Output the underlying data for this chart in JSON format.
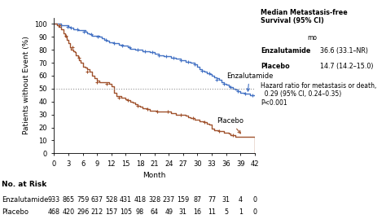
{
  "title": "",
  "ylabel": "Patients without Event (%)",
  "xlabel": "Month",
  "ylim": [
    0,
    105
  ],
  "xlim": [
    0,
    42
  ],
  "xticks": [
    0,
    3,
    6,
    9,
    12,
    15,
    18,
    21,
    24,
    27,
    30,
    33,
    36,
    39,
    42
  ],
  "yticks": [
    0,
    10,
    20,
    30,
    40,
    50,
    60,
    70,
    80,
    90,
    100
  ],
  "enzalutamide_color": "#4472C4",
  "placebo_color": "#A0522D",
  "enza_label": "Enzalutamide",
  "placebo_label": "Placebo",
  "at_risk_times": [
    0,
    3,
    6,
    9,
    12,
    15,
    18,
    21,
    24,
    27,
    30,
    33,
    36,
    39,
    42
  ],
  "at_risk_enza": [
    933,
    865,
    759,
    637,
    528,
    431,
    418,
    328,
    237,
    159,
    87,
    77,
    31,
    4,
    0
  ],
  "at_risk_placebo": [
    468,
    420,
    296,
    212,
    157,
    105,
    98,
    64,
    49,
    31,
    16,
    11,
    5,
    1,
    0
  ],
  "enza_x": [
    0,
    0.3,
    0.6,
    1.0,
    1.5,
    2.0,
    2.5,
    3.0,
    3.3,
    3.6,
    4.0,
    4.3,
    4.6,
    5.0,
    5.3,
    5.6,
    6.0,
    6.5,
    7.0,
    7.5,
    8.0,
    8.5,
    9.0,
    9.5,
    10.0,
    10.5,
    11.0,
    11.5,
    12.0,
    12.5,
    13.0,
    13.5,
    14.0,
    14.5,
    15.0,
    15.5,
    16.0,
    16.5,
    17.0,
    17.5,
    18.0,
    18.5,
    19.0,
    19.5,
    20.0,
    20.5,
    21.0,
    21.5,
    22.0,
    22.5,
    23.0,
    23.5,
    24.0,
    24.5,
    25.0,
    25.5,
    26.0,
    26.5,
    27.0,
    27.5,
    28.0,
    28.5,
    29.0,
    29.5,
    30.0,
    30.5,
    31.0,
    31.5,
    32.0,
    32.5,
    33.0,
    33.5,
    34.0,
    34.5,
    35.0,
    35.5,
    36.0,
    36.5,
    37.0,
    37.5,
    38.0,
    38.5,
    39.0,
    40.0,
    41.0,
    42.0
  ],
  "enza_y": [
    100,
    100,
    100,
    100,
    99,
    99,
    99,
    98,
    97,
    97,
    96,
    96,
    96,
    95,
    95,
    95,
    95,
    94,
    93,
    92,
    91,
    91,
    91,
    90,
    89,
    88,
    87,
    86,
    86,
    85,
    85,
    84,
    84,
    83,
    83,
    82,
    81,
    81,
    80,
    80,
    80,
    79,
    79,
    79,
    78,
    78,
    77,
    77,
    76,
    76,
    75,
    75,
    75,
    74,
    74,
    73,
    73,
    72,
    72,
    71,
    71,
    70,
    70,
    69,
    67,
    65,
    64,
    63,
    62,
    61,
    60,
    59,
    58,
    57,
    55,
    54,
    53,
    52,
    51,
    50,
    49,
    48,
    47,
    46,
    45,
    45
  ],
  "placebo_x": [
    0,
    0.3,
    0.6,
    1.0,
    1.5,
    2.0,
    2.3,
    2.6,
    3.0,
    3.3,
    3.6,
    4.0,
    4.3,
    4.6,
    5.0,
    5.3,
    5.6,
    6.0,
    6.5,
    7.0,
    7.5,
    8.0,
    8.5,
    9.0,
    9.5,
    10.0,
    10.5,
    11.0,
    11.5,
    12.0,
    12.5,
    13.0,
    13.5,
    14.0,
    14.5,
    15.0,
    15.5,
    16.0,
    16.5,
    17.0,
    17.5,
    18.0,
    18.5,
    19.0,
    19.5,
    20.0,
    20.5,
    21.0,
    21.5,
    22.0,
    22.5,
    23.0,
    23.5,
    24.0,
    24.5,
    25.0,
    25.5,
    26.0,
    26.5,
    27.0,
    27.5,
    28.0,
    28.5,
    29.0,
    29.5,
    30.0,
    30.5,
    31.0,
    31.5,
    32.0,
    32.5,
    33.0,
    33.5,
    34.0,
    34.5,
    35.0,
    35.5,
    36.0,
    36.5,
    37.0,
    38.0,
    39.0,
    40.0,
    42.0
  ],
  "placebo_y": [
    100,
    100,
    99,
    98,
    96,
    93,
    90,
    88,
    85,
    82,
    80,
    79,
    78,
    76,
    74,
    72,
    70,
    67,
    66,
    65,
    63,
    60,
    58,
    56,
    55,
    55,
    55,
    55,
    54,
    52,
    47,
    44,
    44,
    43,
    43,
    42,
    41,
    40,
    39,
    38,
    37,
    36,
    35,
    35,
    34,
    33,
    33,
    33,
    32,
    32,
    32,
    32,
    32,
    32,
    31,
    31,
    30,
    30,
    30,
    30,
    29,
    28,
    27,
    27,
    26,
    26,
    25,
    25,
    24,
    23,
    22,
    19,
    18,
    18,
    17,
    17,
    16,
    16,
    15,
    14,
    13,
    13,
    13,
    0
  ],
  "enza_censor_x": [
    1.5,
    2.8,
    3.5,
    4.8,
    6.2,
    7.8,
    9.2,
    10.8,
    12.5,
    14.2,
    15.8,
    17.5,
    19.0,
    20.5,
    22.0,
    23.5,
    25.0,
    26.5,
    28.0,
    29.5,
    31.0,
    32.5,
    34.0,
    35.5,
    37.0,
    38.5,
    40.0,
    41.5
  ],
  "enza_censor_y": [
    99,
    98,
    97,
    96,
    94,
    92,
    90,
    88,
    85,
    83,
    82,
    80,
    79,
    78,
    76,
    75,
    74,
    72,
    71,
    69,
    64,
    62,
    57,
    54,
    51,
    48,
    46,
    45
  ],
  "placebo_censor_x": [
    1.2,
    2.5,
    3.8,
    5.2,
    7.0,
    9.0,
    11.0,
    13.5,
    15.5,
    17.5,
    19.5,
    21.5,
    23.8,
    26.5,
    29.0,
    31.5,
    34.5,
    37.5
  ],
  "placebo_censor_y": [
    99,
    91,
    82,
    74,
    63,
    55,
    54,
    43,
    41,
    37,
    34,
    32,
    32,
    30,
    27,
    24,
    17,
    14
  ]
}
